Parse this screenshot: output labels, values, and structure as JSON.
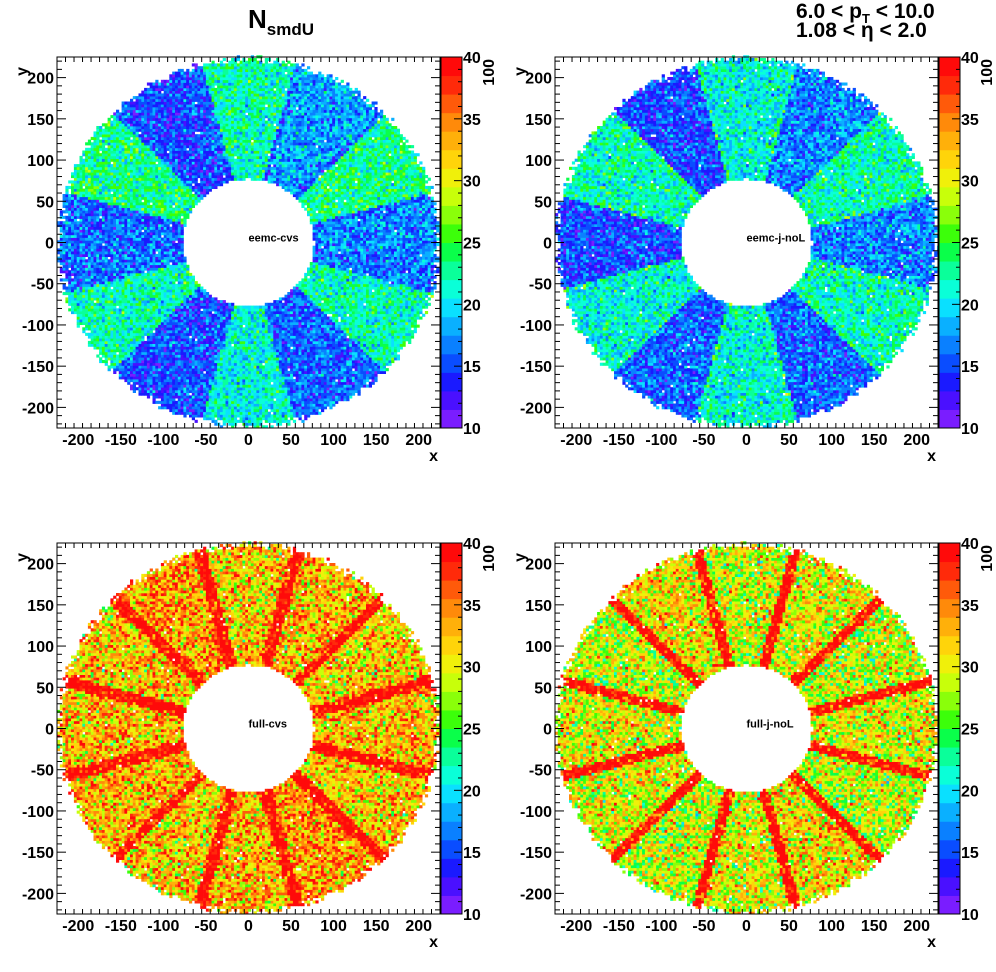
{
  "header": {
    "title_main": "N",
    "title_sub": "smdU",
    "cut_pt": {
      "prefix": "6.0 < p",
      "sub": "T",
      "suffix": " < 10.0"
    },
    "cut_eta": {
      "prefix": "1.08 < ",
      "symbol": "η",
      "suffix": " < 2.0"
    }
  },
  "chart_data": [
    {
      "type": "heatmap",
      "label": "eemc-cvs",
      "xlabel": "x",
      "ylabel": "y",
      "xlim": [
        -225,
        225
      ],
      "ylim": [
        -225,
        225
      ],
      "xticks": [
        -200,
        -150,
        -100,
        -50,
        0,
        50,
        100,
        150,
        200
      ],
      "yticks": [
        -200,
        -150,
        -100,
        -50,
        0,
        50,
        100,
        150,
        200
      ],
      "z_range": [
        10,
        40
      ],
      "z_ticks": [
        10,
        15,
        20,
        25,
        30,
        35,
        40
      ],
      "z_overflow_label": "100",
      "ring": {
        "inner_radius": 77,
        "outer_radius": 226
      },
      "num_sectors": 12,
      "sector_mean_z": [
        23,
        18,
        22,
        15,
        23,
        16,
        22,
        15,
        21,
        16,
        22,
        17
      ],
      "sector_noise": 3,
      "spoke_mean_z": 21,
      "spoke_half_width": 3,
      "spoke_hot_fraction": 0,
      "spoke_angle_offset": 15
    },
    {
      "type": "heatmap",
      "label": "eemc-j-noL",
      "xlabel": "x",
      "ylabel": "y",
      "xlim": [
        -225,
        225
      ],
      "ylim": [
        -225,
        225
      ],
      "xticks": [
        -200,
        -150,
        -100,
        -50,
        0,
        50,
        100,
        150,
        200
      ],
      "yticks": [
        -200,
        -150,
        -100,
        -50,
        0,
        50,
        100,
        150,
        200
      ],
      "z_range": [
        10,
        40
      ],
      "z_ticks": [
        10,
        15,
        20,
        25,
        30,
        35,
        40
      ],
      "z_overflow_label": "100",
      "ring": {
        "inner_radius": 77,
        "outer_radius": 226
      },
      "num_sectors": 12,
      "sector_mean_z": [
        22,
        17,
        21,
        15,
        22,
        15,
        21,
        16,
        21,
        16,
        22,
        17
      ],
      "sector_noise": 3,
      "spoke_mean_z": 27,
      "spoke_half_width": 2,
      "spoke_hot_fraction": 0.15,
      "spoke_angle_offset": 15
    },
    {
      "type": "heatmap",
      "label": "full-cvs",
      "xlabel": "x",
      "ylabel": "y",
      "xlim": [
        -225,
        225
      ],
      "ylim": [
        -225,
        225
      ],
      "xticks": [
        -200,
        -150,
        -100,
        -50,
        0,
        50,
        100,
        150,
        200
      ],
      "yticks": [
        -200,
        -150,
        -100,
        -50,
        0,
        50,
        100,
        150,
        200
      ],
      "z_range": [
        10,
        40
      ],
      "z_ticks": [
        10,
        15,
        20,
        25,
        30,
        35,
        40
      ],
      "z_overflow_label": "100",
      "ring": {
        "inner_radius": 77,
        "outer_radius": 226
      },
      "num_sectors": 12,
      "sector_mean_z": [
        32,
        33,
        32,
        34,
        32,
        33,
        33,
        32,
        33,
        34,
        32,
        33
      ],
      "sector_noise": 5,
      "spoke_mean_z": 40,
      "spoke_half_width": 7,
      "spoke_hot_fraction": 0.85,
      "spoke_angle_offset": 15
    },
    {
      "type": "heatmap",
      "label": "full-j-noL",
      "xlabel": "x",
      "ylabel": "y",
      "xlim": [
        -225,
        225
      ],
      "ylim": [
        -225,
        225
      ],
      "xticks": [
        -200,
        -150,
        -100,
        -50,
        0,
        50,
        100,
        150,
        200
      ],
      "yticks": [
        -200,
        -150,
        -100,
        -50,
        0,
        50,
        100,
        150,
        200
      ],
      "z_range": [
        10,
        40
      ],
      "z_ticks": [
        10,
        15,
        20,
        25,
        30,
        35,
        40
      ],
      "z_overflow_label": "100",
      "ring": {
        "inner_radius": 77,
        "outer_radius": 226
      },
      "num_sectors": 12,
      "sector_mean_z": [
        29,
        30,
        29,
        31,
        29,
        30,
        30,
        29,
        30,
        31,
        29,
        30
      ],
      "sector_noise": 5,
      "spoke_mean_z": 40,
      "spoke_half_width": 6,
      "spoke_hot_fraction": 0.85,
      "spoke_angle_offset": 15
    }
  ]
}
